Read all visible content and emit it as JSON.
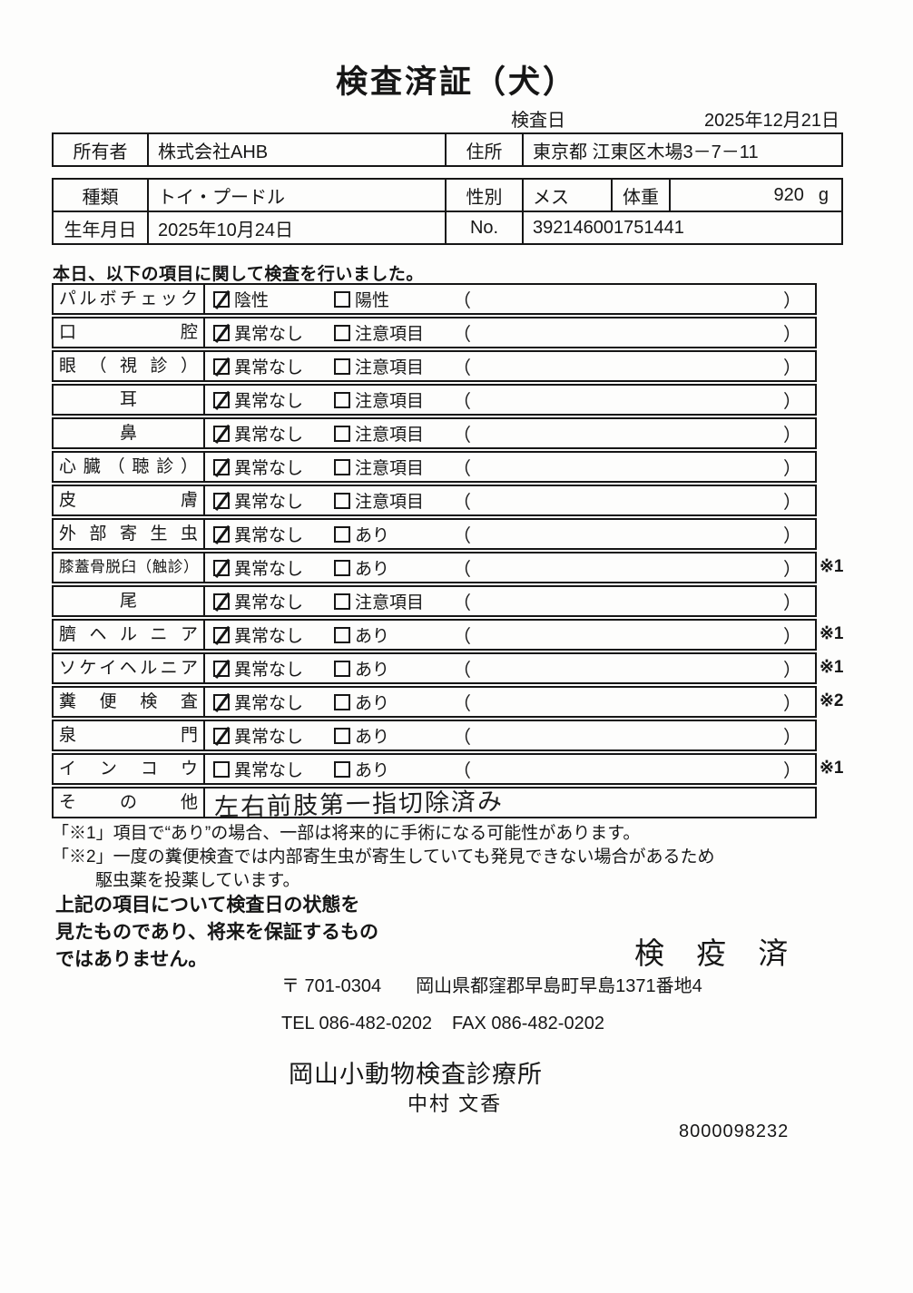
{
  "title": "検査済証（犬）",
  "inspection": {
    "date_label": "検査日",
    "date": "2025年12月21日"
  },
  "owner": {
    "label": "所有者",
    "name": "株式会社AHB",
    "address_label": "住所",
    "address": "東京都 江東区木場3－7－11"
  },
  "pet": {
    "breed_label": "種類",
    "breed": "トイ・プードル",
    "sex_label": "性別",
    "sex": "メス",
    "weight_label": "体重",
    "weight": "920",
    "weight_unit": "g",
    "birth_label": "生年月日",
    "birth": "2025年10月24日",
    "no_label": "No.",
    "no": "392146001751441"
  },
  "intro": "本日、以下の項目に関して検査を行いました。",
  "exam": {
    "paren_open": "（",
    "paren_close": "）",
    "rows": [
      {
        "item": "パルボチェック",
        "opt1": "陰性",
        "opt1_checked": true,
        "opt2": "陽性",
        "opt2_checked": false,
        "mark": ""
      },
      {
        "item": "口腔",
        "opt1": "異常なし",
        "opt1_checked": true,
        "opt2": "注意項目",
        "opt2_checked": false,
        "mark": ""
      },
      {
        "item": "眼（視診）",
        "opt1": "異常なし",
        "opt1_checked": true,
        "opt2": "注意項目",
        "opt2_checked": false,
        "mark": ""
      },
      {
        "item": "耳",
        "opt1": "異常なし",
        "opt1_checked": true,
        "opt2": "注意項目",
        "opt2_checked": false,
        "mark": ""
      },
      {
        "item": "鼻",
        "opt1": "異常なし",
        "opt1_checked": true,
        "opt2": "注意項目",
        "opt2_checked": false,
        "mark": ""
      },
      {
        "item": "心臓（聴診）",
        "opt1": "異常なし",
        "opt1_checked": true,
        "opt2": "注意項目",
        "opt2_checked": false,
        "mark": ""
      },
      {
        "item": "皮膚",
        "opt1": "異常なし",
        "opt1_checked": true,
        "opt2": "注意項目",
        "opt2_checked": false,
        "mark": ""
      },
      {
        "item": "外部寄生虫",
        "opt1": "異常なし",
        "opt1_checked": true,
        "opt2": "あり",
        "opt2_checked": false,
        "mark": ""
      },
      {
        "item": "膝蓋骨脱臼（触診）",
        "opt1": "異常なし",
        "opt1_checked": true,
        "opt2": "あり",
        "opt2_checked": false,
        "mark": "※1"
      },
      {
        "item": "尾",
        "opt1": "異常なし",
        "opt1_checked": true,
        "opt2": "注意項目",
        "opt2_checked": false,
        "mark": ""
      },
      {
        "item": "臍ヘルニア",
        "opt1": "異常なし",
        "opt1_checked": true,
        "opt2": "あり",
        "opt2_checked": false,
        "mark": "※1"
      },
      {
        "item": "ソケイヘルニア",
        "opt1": "異常なし",
        "opt1_checked": true,
        "opt2": "あり",
        "opt2_checked": false,
        "mark": "※1"
      },
      {
        "item": "糞便検査",
        "opt1": "異常なし",
        "opt1_checked": true,
        "opt2": "あり",
        "opt2_checked": false,
        "mark": "※2"
      },
      {
        "item": "泉門",
        "opt1": "異常なし",
        "opt1_checked": true,
        "opt2": "あり",
        "opt2_checked": false,
        "mark": ""
      },
      {
        "item": "インコウ",
        "opt1": "異常なし",
        "opt1_checked": false,
        "opt2": "あり",
        "opt2_checked": false,
        "mark": "※1"
      }
    ],
    "other_row": {
      "item": "その他",
      "handwritten_note": "左右前肢第一指切除済み"
    }
  },
  "footnotes": {
    "line1": "「※1」項目で“あり”の場合、一部は将来的に手術になる可能性があります。",
    "line2": "「※2」一度の糞便検査では内部寄生虫が寄生していても発見できない場合があるため",
    "line3": "駆虫薬を投薬しています。"
  },
  "disclaimer": {
    "line1": "上記の項目について検査日の状態を",
    "line2": "見たものであり、将来を保証するもの",
    "line3": "ではありません。"
  },
  "stamp": "検 疫 済",
  "clinic": {
    "postal": "〒 701-0304",
    "address": "岡山県都窪郡早島町早島1371番地4",
    "tel": "TEL 086-482-0202",
    "fax": "FAX 086-482-0202",
    "name": "岡山小動物検査診療所",
    "veterinarian": "中村 文香",
    "code": "8000098232"
  }
}
